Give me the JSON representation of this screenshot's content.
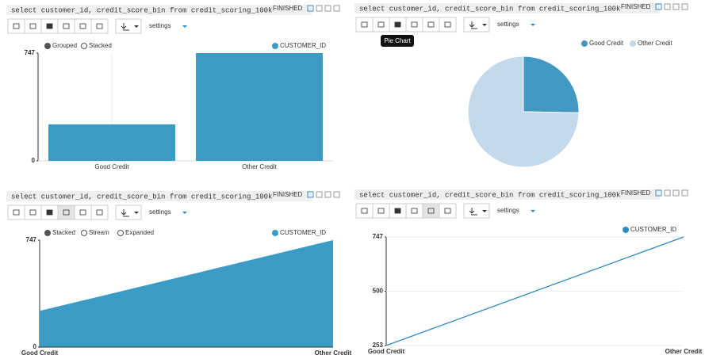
{
  "paragraphs": [
    {
      "query": "select customer_id, credit_score_bin from credit_scoring_100k",
      "status": "FINISHED",
      "settings": "settings"
    },
    {
      "query": "select customer_id, credit_score_bin from credit_scoring_100k",
      "status": "FINISHED",
      "settings": "settings"
    },
    {
      "query": "select customer_id, credit_score_bin from credit_scoring_100k",
      "status": "FINISHED",
      "settings": "settings"
    },
    {
      "query": "select customer_id, credit_score_bin from credit_scoring_100k",
      "status": "FINISHED",
      "settings": "settings"
    }
  ],
  "chart_data": [
    {
      "type": "bar",
      "modes": [
        "Grouped",
        "Stacked"
      ],
      "categories": [
        "Good Credit",
        "Other Credit"
      ],
      "series": [
        {
          "name": "CUSTOMER_ID",
          "color": "#3a9cc4",
          "values": [
            253,
            747
          ]
        }
      ],
      "ylim": [
        0,
        747
      ],
      "yticks": [
        0,
        747
      ],
      "grid": false
    },
    {
      "type": "pie",
      "tooltip": "Pie Chart",
      "categories": [
        "Good Credit",
        "Other Credit"
      ],
      "values": [
        253,
        747
      ],
      "colors": [
        "#4199c3",
        "#c4d9ea"
      ]
    },
    {
      "type": "area",
      "modes": [
        "Stacked",
        "Stream",
        "Expanded"
      ],
      "categories": [
        "Good Credit",
        "Other Credit"
      ],
      "series": [
        {
          "name": "CUSTOMER_ID",
          "color": "#3a9cc4",
          "values": [
            253,
            747
          ]
        }
      ],
      "ylim": [
        0,
        747
      ],
      "yticks": [
        0,
        747
      ],
      "grid": false
    },
    {
      "type": "line",
      "categories": [
        "Good Credit",
        "Other Credit"
      ],
      "series": [
        {
          "name": "CUSTOMER_ID",
          "color": "#2d8bbd",
          "values": [
            253,
            747
          ]
        }
      ],
      "ylim": [
        253,
        747
      ],
      "yticks": [
        253,
        500,
        747
      ],
      "grid": true
    }
  ]
}
